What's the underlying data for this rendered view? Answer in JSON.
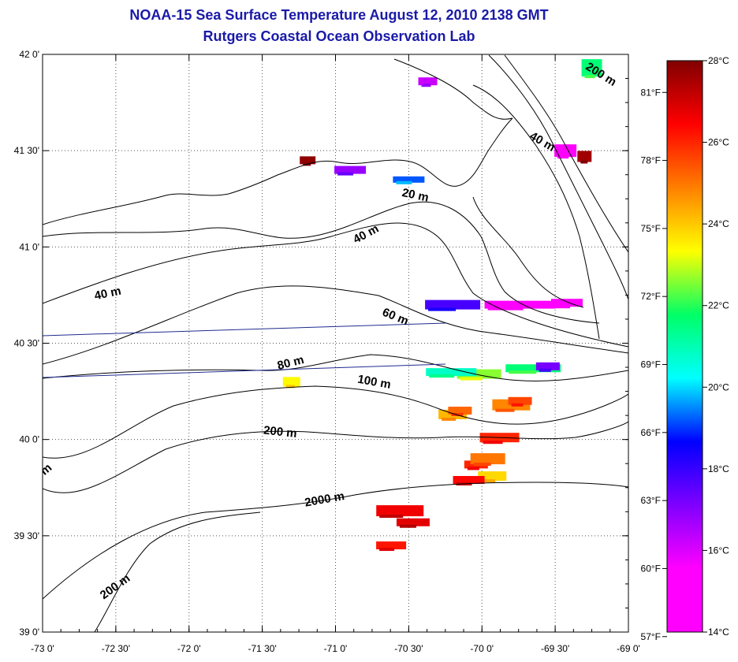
{
  "header": {
    "title": "NOAA-15 Sea Surface Temperature August 12, 2010 2138 GMT",
    "subtitle": "Rutgers Coastal Ocean Observation Lab"
  },
  "map": {
    "lon_range": [
      -73.0,
      -69.0
    ],
    "lat_range": [
      39.0,
      42.0
    ],
    "lon_ticks": [
      {
        "value": -73.0,
        "label": "-73 0'"
      },
      {
        "value": -72.5,
        "label": "-72 30'"
      },
      {
        "value": -72.0,
        "label": "-72 0'"
      },
      {
        "value": -71.5,
        "label": "-71 30'"
      },
      {
        "value": -71.0,
        "label": "-71 0'"
      },
      {
        "value": -70.5,
        "label": "-70 30'"
      },
      {
        "value": -70.0,
        "label": "-70 0'"
      },
      {
        "value": -69.5,
        "label": "-69 30'"
      },
      {
        "value": -69.0,
        "label": "-69 0'"
      }
    ],
    "lat_ticks": [
      {
        "value": 42.0,
        "label": "42 0'"
      },
      {
        "value": 41.5,
        "label": "41 30'"
      },
      {
        "value": 41.0,
        "label": "41 0'"
      },
      {
        "value": 40.5,
        "label": "40 30'"
      },
      {
        "value": 40.0,
        "label": "40 0'"
      },
      {
        "value": 39.5,
        "label": "39 30'"
      },
      {
        "value": 39.0,
        "label": "39 0'"
      }
    ],
    "grid": "dotted",
    "depth_labels": [
      {
        "text": "200 m",
        "lon": -69.2,
        "lat": 41.88,
        "rotate": 32
      },
      {
        "text": "40 m",
        "lon": -69.6,
        "lat": 41.53,
        "rotate": 30
      },
      {
        "text": "20 m",
        "lon": -70.46,
        "lat": 41.25,
        "rotate": 12
      },
      {
        "text": "40 m",
        "lon": -70.78,
        "lat": 41.05,
        "rotate": -28
      },
      {
        "text": "40 m",
        "lon": -72.55,
        "lat": 40.74,
        "rotate": -12
      },
      {
        "text": "60 m",
        "lon": -70.6,
        "lat": 40.62,
        "rotate": 22
      },
      {
        "text": "80 m",
        "lon": -71.3,
        "lat": 40.38,
        "rotate": -14
      },
      {
        "text": "100 m",
        "lon": -70.74,
        "lat": 40.28,
        "rotate": 10
      },
      {
        "text": "200 m",
        "lon": -71.38,
        "lat": 40.02,
        "rotate": 6
      },
      {
        "text": "2000 m",
        "lon": -71.07,
        "lat": 39.67,
        "rotate": -10
      },
      {
        "text": "200 m",
        "lon": -72.49,
        "lat": 39.22,
        "rotate": -36
      },
      {
        "text": "m",
        "lon": -72.96,
        "lat": 39.83,
        "rotate": -40
      }
    ]
  },
  "colorbar": {
    "celsius": [
      {
        "value": 28,
        "label": "28°C"
      },
      {
        "value": 26,
        "label": "26°C"
      },
      {
        "value": 24,
        "label": "24°C"
      },
      {
        "value": 22,
        "label": "22°C"
      },
      {
        "value": 20,
        "label": "20°C"
      },
      {
        "value": 18,
        "label": "18°C"
      },
      {
        "value": 16,
        "label": "16°C"
      },
      {
        "value": 14,
        "label": "14°C"
      }
    ],
    "fahrenheit": [
      {
        "value": 81,
        "label": "81°F"
      },
      {
        "value": 78,
        "label": "78°F"
      },
      {
        "value": 75,
        "label": "75°F"
      },
      {
        "value": 72,
        "label": "72°F"
      },
      {
        "value": 69,
        "label": "69°F"
      },
      {
        "value": 66,
        "label": "66°F"
      },
      {
        "value": 63,
        "label": "63°F"
      },
      {
        "value": 60,
        "label": "60°F"
      },
      {
        "value": 57,
        "label": "57°F"
      }
    ],
    "stops": [
      "#ff00ff",
      "#ff00ff",
      "#7f00ff",
      "#0000ff",
      "#00ffff",
      "#00ff66",
      "#ffff00",
      "#ff7f00",
      "#ff0000",
      "#800000"
    ]
  },
  "sst_patches": [
    {
      "lon": -70.56,
      "lat": 39.63,
      "temp": 26.6
    },
    {
      "lon": -70.47,
      "lat": 39.57,
      "temp": 26.8
    },
    {
      "lon": -70.62,
      "lat": 39.45,
      "temp": 26.2
    },
    {
      "lon": -70.04,
      "lat": 39.87,
      "temp": 26.0
    },
    {
      "lon": -69.96,
      "lat": 39.9,
      "temp": 25.0
    },
    {
      "lon": -69.93,
      "lat": 39.81,
      "temp": 23.8
    },
    {
      "lon": -70.09,
      "lat": 39.79,
      "temp": 26.4
    },
    {
      "lon": -69.88,
      "lat": 40.01,
      "temp": 26.0
    },
    {
      "lon": -69.8,
      "lat": 40.18,
      "temp": 24.8
    },
    {
      "lon": -69.74,
      "lat": 40.2,
      "temp": 25.6
    },
    {
      "lon": -70.2,
      "lat": 40.13,
      "temp": 24.2
    },
    {
      "lon": -70.15,
      "lat": 40.15,
      "temp": 25.2
    },
    {
      "lon": -70.02,
      "lat": 40.34,
      "temp": 22.6
    },
    {
      "lon": -70.21,
      "lat": 40.35,
      "temp": 20.8
    },
    {
      "lon": -71.3,
      "lat": 40.3,
      "temp": 23.4
    },
    {
      "lon": -69.65,
      "lat": 40.37,
      "temp": 21.6
    },
    {
      "lon": -69.55,
      "lat": 40.38,
      "temp": 17.2
    },
    {
      "lon": -69.74,
      "lat": 40.7,
      "temp": 14.6
    },
    {
      "lon": -69.42,
      "lat": 40.71,
      "temp": 14.3
    },
    {
      "lon": -70.2,
      "lat": 40.7,
      "temp": 17.8
    },
    {
      "lon": -69.43,
      "lat": 41.5,
      "temp": 14.5
    },
    {
      "lon": -69.3,
      "lat": 41.47,
      "temp": 27.6
    },
    {
      "lon": -69.25,
      "lat": 41.93,
      "temp": 21.6
    },
    {
      "lon": -70.37,
      "lat": 41.86,
      "temp": 16.2
    },
    {
      "lon": -70.9,
      "lat": 41.4,
      "temp": 16.8
    },
    {
      "lon": -71.19,
      "lat": 41.45,
      "temp": 27.8
    },
    {
      "lon": -70.5,
      "lat": 41.35,
      "temp": 19.2
    }
  ]
}
